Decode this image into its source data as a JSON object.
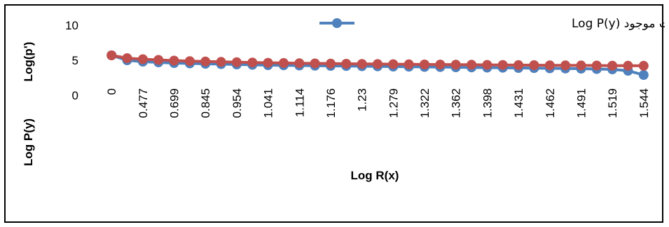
{
  "chart_data": {
    "type": "line",
    "ylabel_primary": "Log(p')",
    "ylabel_secondary": "Log P(y)",
    "xlabel": "Log R(x)",
    "legend_label": "لگارتیم جمعیت موجود Log P(y)",
    "ylim": [
      0,
      10
    ],
    "yticks": [
      0,
      5,
      10
    ],
    "x_tick_labels": [
      "0",
      "0.477",
      "0.699",
      "0.845",
      "0.954",
      "1.041",
      "1.114",
      "1.176",
      "1.23",
      "1.279",
      "1.322",
      "1.362",
      "1.398",
      "1.431",
      "1.462",
      "1.491",
      "1.519",
      "1.544"
    ],
    "x": [
      0,
      0.301,
      0.477,
      0.602,
      0.699,
      0.778,
      0.845,
      0.903,
      0.954,
      1.0,
      1.041,
      1.079,
      1.114,
      1.146,
      1.176,
      1.204,
      1.23,
      1.255,
      1.279,
      1.301,
      1.322,
      1.342,
      1.362,
      1.38,
      1.398,
      1.415,
      1.431,
      1.447,
      1.462,
      1.477,
      1.491,
      1.505,
      1.519,
      1.531,
      1.544
    ],
    "series": [
      {
        "name": "لگارتیم جمعیت موجود Log P(y)",
        "color": "#4f81bd",
        "values": [
          5.7,
          5.0,
          4.8,
          4.7,
          4.6,
          4.55,
          4.5,
          4.45,
          4.4,
          4.35,
          4.3,
          4.28,
          4.25,
          4.22,
          4.2,
          4.18,
          4.15,
          4.13,
          4.1,
          4.08,
          4.05,
          4.03,
          4.0,
          3.98,
          3.95,
          3.93,
          3.9,
          3.88,
          3.85,
          3.82,
          3.8,
          3.75,
          3.7,
          3.5,
          2.9
        ]
      },
      {
        "name": "",
        "color": "#c0504d",
        "values": [
          5.7,
          5.3,
          5.15,
          5.05,
          4.95,
          4.88,
          4.82,
          4.77,
          4.72,
          4.68,
          4.64,
          4.61,
          4.58,
          4.55,
          4.52,
          4.5,
          4.48,
          4.46,
          4.44,
          4.42,
          4.4,
          4.39,
          4.37,
          4.36,
          4.34,
          4.33,
          4.31,
          4.3,
          4.28,
          4.27,
          4.26,
          4.25,
          4.23,
          4.22,
          4.21
        ]
      }
    ],
    "grid": false,
    "legend_position": "top-right"
  }
}
